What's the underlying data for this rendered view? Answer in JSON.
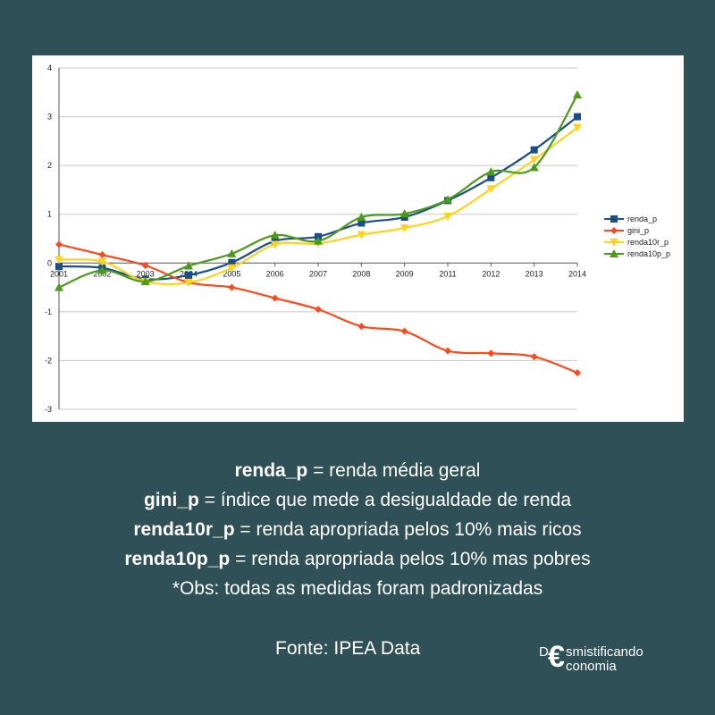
{
  "chart_data": {
    "type": "line",
    "x": [
      "2001",
      "2002",
      "2003",
      "2004",
      "2005",
      "2006",
      "2007",
      "2008",
      "2009",
      "2011",
      "2012",
      "2013",
      "2014"
    ],
    "ylim": [
      -3,
      4
    ],
    "yticks": [
      "-3",
      "-2",
      "-1",
      "0",
      "1",
      "2",
      "3",
      "4"
    ],
    "grid": "horizontal",
    "legend_position": "right",
    "series": [
      {
        "name": "renda_p",
        "color": "#1a4e8a",
        "marker": "square",
        "values": [
          -0.07,
          -0.1,
          -0.33,
          -0.25,
          0.01,
          0.45,
          0.54,
          0.82,
          0.94,
          1.28,
          1.75,
          2.32,
          3.0
        ]
      },
      {
        "name": "gini_p",
        "color": "#ff4a1c",
        "marker": "diamond",
        "values": [
          0.38,
          0.17,
          -0.05,
          -0.4,
          -0.5,
          -0.72,
          -0.95,
          -1.3,
          -1.4,
          -1.8,
          -1.85,
          -1.92,
          -2.25
        ]
      },
      {
        "name": "renda10r_p",
        "color": "#ffd320",
        "marker": "triangle-down",
        "values": [
          0.07,
          0.03,
          -0.38,
          -0.4,
          -0.1,
          0.38,
          0.4,
          0.58,
          0.72,
          0.96,
          1.52,
          2.12,
          2.78
        ]
      },
      {
        "name": "renda10p_p",
        "color": "#4a9b1a",
        "marker": "triangle",
        "values": [
          -0.5,
          -0.15,
          -0.38,
          -0.06,
          0.19,
          0.57,
          0.45,
          0.94,
          1.01,
          1.3,
          1.87,
          1.96,
          3.45
        ]
      }
    ]
  },
  "caption": {
    "lines": [
      {
        "term": "renda_p",
        "desc": " = renda média geral"
      },
      {
        "term": "gini_p",
        "desc": " = índice que mede a desigualdade de renda"
      },
      {
        "term": "renda10r_p",
        "desc": " = renda apropriada pelos 10% mais ricos"
      },
      {
        "term": "renda10p_p",
        "desc": " = renda apropriada pelos 10% mas pobres"
      }
    ],
    "note": "*Obs: todas as medidas foram padronizadas"
  },
  "source": "Fonte: IPEA Data",
  "logo": {
    "initial": "D",
    "symbol": "€",
    "top_rest": "smistificando",
    "bottom_rest": "conomia"
  }
}
